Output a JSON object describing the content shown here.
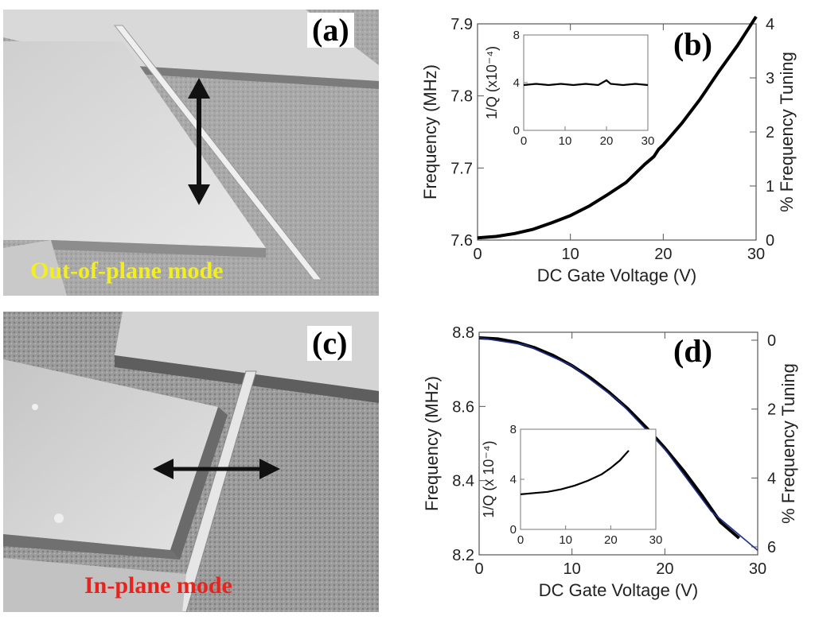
{
  "panels": {
    "a": {
      "label": "(a)",
      "caption": "Out-of-plane mode",
      "caption_color": "#f2ee22"
    },
    "b": {
      "label": "(b)"
    },
    "c": {
      "label": "(c)",
      "caption": "In-plane mode",
      "caption_color": "#e8231c"
    },
    "d": {
      "label": "(d)"
    }
  },
  "chart_data": [
    {
      "panel": "b",
      "type": "line",
      "xlabel": "DC Gate Voltage (V)",
      "ylabel": "Frequency (MHz)",
      "ylabel_right": "% Frequency Tuning",
      "xlim": [
        0,
        30
      ],
      "ylim": [
        7.6,
        7.9
      ],
      "ylim_right": [
        0,
        4
      ],
      "x_ticks": [
        "0",
        "10",
        "20",
        "30"
      ],
      "y_ticks": [
        "7.6",
        "7.7",
        "7.8",
        "7.9"
      ],
      "y_ticks_right": [
        "0",
        "1",
        "2",
        "3",
        "4"
      ],
      "series": [
        {
          "color": "#000000",
          "x": [
            0,
            2,
            4,
            6,
            8,
            10,
            12,
            14,
            16,
            18,
            19,
            19.5,
            20,
            22,
            24,
            26,
            28,
            30
          ],
          "y": [
            7.603,
            7.605,
            7.609,
            7.615,
            7.624,
            7.634,
            7.647,
            7.663,
            7.68,
            7.705,
            7.716,
            7.726,
            7.732,
            7.762,
            7.796,
            7.834,
            7.87,
            7.91
          ]
        }
      ],
      "inset": {
        "type": "line",
        "ylabel": "1/Q (x10⁻⁴)",
        "xlim": [
          0,
          30
        ],
        "ylim": [
          0,
          8
        ],
        "x_ticks": [
          "0",
          "10",
          "20",
          "30"
        ],
        "y_ticks": [
          "0",
          "4",
          "8"
        ],
        "series": [
          {
            "color": "#000000",
            "x": [
              0,
              3,
              6,
              9,
              12,
              15,
              18,
              19,
              20,
              21,
              24,
              27,
              30
            ],
            "y": [
              3.8,
              3.9,
              3.8,
              3.9,
              3.8,
              3.9,
              3.8,
              4.0,
              4.2,
              3.9,
              3.8,
              3.9,
              3.8
            ]
          }
        ]
      }
    },
    {
      "panel": "d",
      "type": "line",
      "xlabel": "DC Gate Voltage (V)",
      "ylabel": "Frequency (MHz)",
      "ylabel_right": "% Frequency Tuning",
      "xlim": [
        0,
        30
      ],
      "ylim": [
        8.2,
        8.8
      ],
      "ylim_right_reversed": [
        0,
        6
      ],
      "x_ticks": [
        "0",
        "10",
        "20",
        "30"
      ],
      "y_ticks": [
        "8.2",
        "8.4",
        "8.6",
        "8.8"
      ],
      "y_ticks_right": [
        "0",
        "2",
        "4",
        "6"
      ],
      "series": [
        {
          "color": "#000000",
          "x": [
            0,
            2,
            4,
            6,
            8,
            10,
            12,
            14,
            16,
            18,
            20,
            22,
            24,
            26,
            28
          ],
          "y": [
            8.785,
            8.782,
            8.773,
            8.758,
            8.737,
            8.71,
            8.677,
            8.638,
            8.594,
            8.543,
            8.488,
            8.427,
            8.36,
            8.288,
            8.245
          ]
        },
        {
          "color": "#1e2f8a",
          "x": [
            0,
            5,
            10,
            15,
            20,
            25,
            30
          ],
          "y": [
            8.785,
            8.766,
            8.71,
            8.616,
            8.485,
            8.317,
            8.212
          ]
        }
      ],
      "inset": {
        "type": "line",
        "ylabel": "1/Q (x 10⁻⁴)",
        "xlim": [
          0,
          30
        ],
        "ylim": [
          0,
          8
        ],
        "x_ticks": [
          "0",
          "10",
          "20",
          "30"
        ],
        "y_ticks": [
          "0",
          "4",
          "8"
        ],
        "series": [
          {
            "color": "#000000",
            "x": [
              0,
              3,
              6,
              9,
              12,
              15,
              18,
              20,
              22,
              24
            ],
            "y": [
              2.8,
              2.9,
              3.0,
              3.2,
              3.5,
              3.9,
              4.4,
              4.9,
              5.5,
              6.3
            ]
          }
        ]
      }
    }
  ]
}
